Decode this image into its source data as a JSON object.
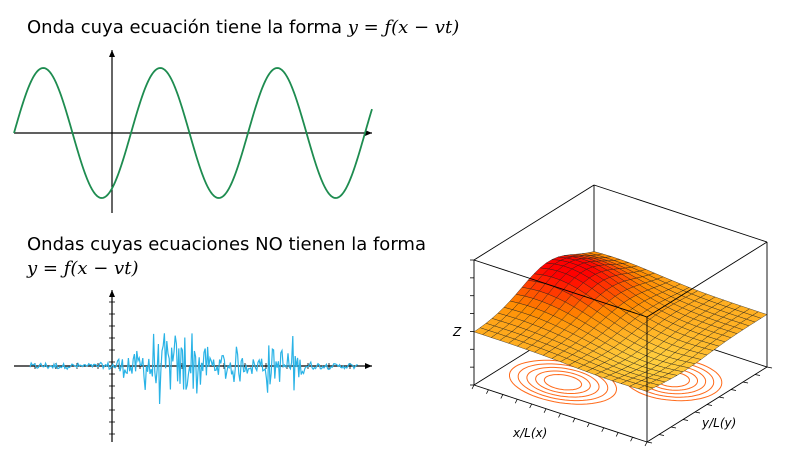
{
  "top": {
    "title_text": "Onda cuya ecuación tiene la forma ",
    "title_eq": "y = ƒ(x − vt)",
    "wave_color": "#1e8c50"
  },
  "bottom": {
    "title_line1": "Ondas cuyas ecuaciones NO tienen la forma",
    "title_eq": "y = ƒ(x − vt)",
    "signal_color": "#2ab3e6"
  },
  "surface": {
    "z_label": "Z",
    "x_label": "x/L(x)",
    "y_label": "y/L(y)",
    "surface_colors": [
      "#ff0000",
      "#ff8a00",
      "#ffd040"
    ],
    "contour_color": "#ff6a1a"
  }
}
